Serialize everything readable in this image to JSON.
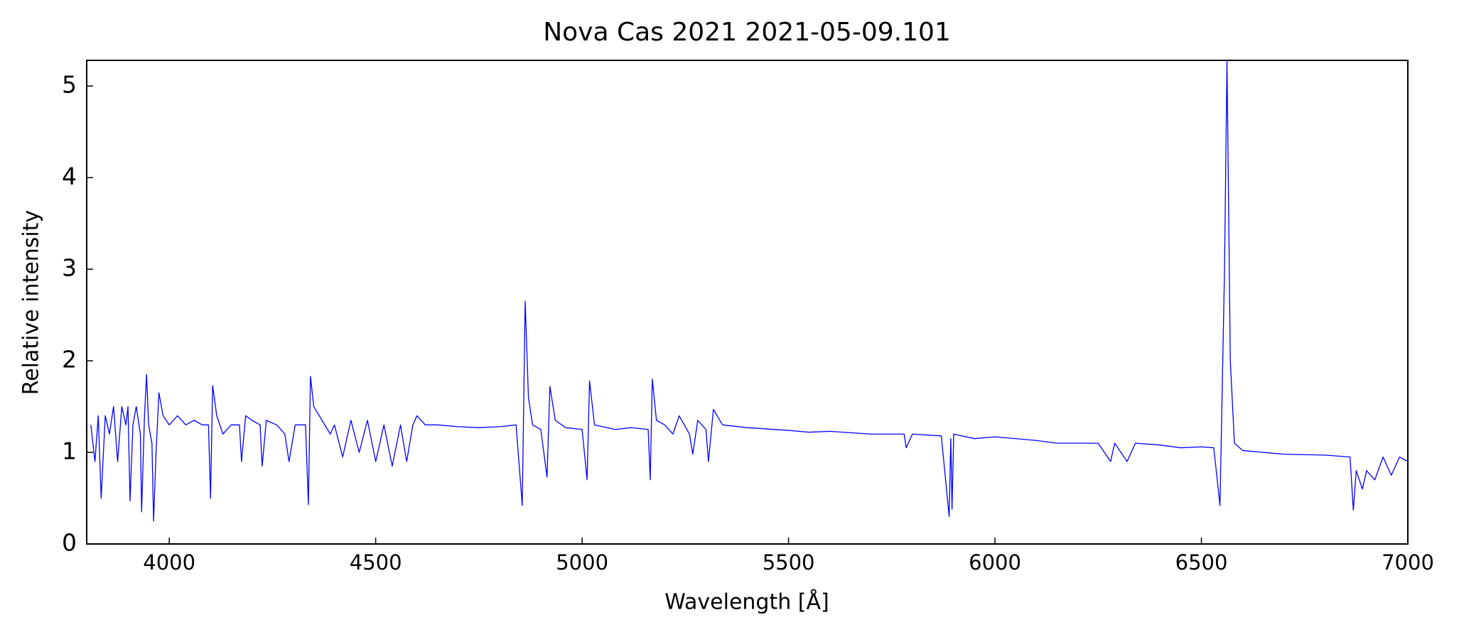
{
  "chart_data": {
    "type": "line",
    "title": "Nova Cas 2021  2021-05-09.101",
    "x_label": "Wavelength [Å]",
    "y_label": "Relative intensity",
    "xlim": [
      3800,
      7000
    ],
    "ylim": [
      0,
      5.28
    ],
    "xticks": [
      4000,
      4500,
      5000,
      5500,
      6000,
      6500,
      7000
    ],
    "yticks": [
      0,
      1,
      2,
      3,
      4,
      5
    ],
    "color": "#0000ff",
    "x": [
      3810,
      3820,
      3828,
      3835,
      3845,
      3855,
      3865,
      3875,
      3885,
      3895,
      3900,
      3905,
      3912,
      3920,
      3930,
      3933,
      3940,
      3945,
      3950,
      3958,
      3962,
      3968,
      3975,
      3985,
      4000,
      4020,
      4040,
      4060,
      4080,
      4095,
      4100,
      4105,
      4115,
      4130,
      4150,
      4170,
      4175,
      4185,
      4200,
      4220,
      4225,
      4235,
      4260,
      4280,
      4290,
      4305,
      4330,
      4337,
      4342,
      4350,
      4370,
      4390,
      4400,
      4420,
      4440,
      4460,
      4480,
      4500,
      4520,
      4540,
      4560,
      4575,
      4590,
      4600,
      4620,
      4650,
      4700,
      4750,
      4800,
      4840,
      4855,
      4862,
      4870,
      4880,
      4900,
      4915,
      4922,
      4935,
      4960,
      5000,
      5012,
      5018,
      5030,
      5080,
      5120,
      5160,
      5165,
      5170,
      5180,
      5200,
      5220,
      5235,
      5260,
      5268,
      5280,
      5300,
      5306,
      5318,
      5340,
      5400,
      5500,
      5550,
      5600,
      5700,
      5780,
      5785,
      5800,
      5870,
      5889,
      5893,
      5896,
      5900,
      5950,
      6000,
      6100,
      6150,
      6250,
      6280,
      6290,
      6320,
      6340,
      6400,
      6450,
      6500,
      6530,
      6545,
      6556,
      6562,
      6570,
      6580,
      6600,
      6700,
      6800,
      6860,
      6868,
      6875,
      6890,
      6900,
      6920,
      6940,
      6960,
      6980,
      7000
    ],
    "values": [
      1.3,
      0.9,
      1.4,
      0.5,
      1.4,
      1.2,
      1.5,
      0.9,
      1.5,
      1.3,
      1.5,
      0.47,
      1.3,
      1.5,
      1.2,
      0.35,
      1.4,
      1.85,
      1.3,
      1.1,
      0.25,
      1.0,
      1.65,
      1.4,
      1.3,
      1.4,
      1.3,
      1.35,
      1.3,
      1.3,
      0.5,
      1.73,
      1.4,
      1.2,
      1.3,
      1.3,
      0.9,
      1.4,
      1.35,
      1.3,
      0.85,
      1.35,
      1.3,
      1.2,
      0.9,
      1.3,
      1.3,
      0.43,
      1.83,
      1.5,
      1.35,
      1.2,
      1.3,
      0.95,
      1.35,
      1.0,
      1.35,
      0.9,
      1.3,
      0.85,
      1.3,
      0.9,
      1.3,
      1.4,
      1.3,
      1.3,
      1.28,
      1.27,
      1.28,
      1.3,
      0.42,
      2.65,
      1.6,
      1.3,
      1.25,
      0.73,
      1.72,
      1.35,
      1.27,
      1.25,
      0.7,
      1.78,
      1.3,
      1.25,
      1.27,
      1.25,
      0.7,
      1.8,
      1.35,
      1.3,
      1.2,
      1.4,
      1.2,
      0.98,
      1.35,
      1.25,
      0.9,
      1.47,
      1.3,
      1.27,
      1.24,
      1.22,
      1.23,
      1.2,
      1.2,
      1.05,
      1.2,
      1.18,
      0.3,
      1.15,
      0.38,
      1.2,
      1.15,
      1.17,
      1.13,
      1.1,
      1.1,
      0.9,
      1.1,
      0.9,
      1.1,
      1.08,
      1.05,
      1.06,
      1.05,
      0.42,
      3.0,
      5.28,
      2.0,
      1.1,
      1.02,
      0.98,
      0.97,
      0.95,
      0.37,
      0.8,
      0.6,
      0.8,
      0.7,
      0.95,
      0.75,
      0.95,
      0.9
    ]
  }
}
